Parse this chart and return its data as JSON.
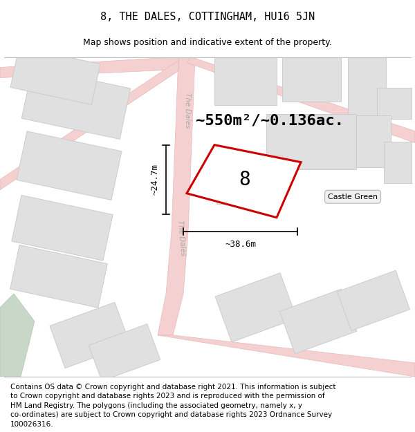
{
  "title": "8, THE DALES, COTTINGHAM, HU16 5JN",
  "subtitle": "Map shows position and indicative extent of the property.",
  "footer": "Contains OS data © Crown copyright and database right 2021. This information is subject\nto Crown copyright and database rights 2023 and is reproduced with the permission of\nHM Land Registry. The polygons (including the associated geometry, namely x, y\nco-ordinates) are subject to Crown copyright and database rights 2023 Ordnance Survey\n100026316.",
  "area_label": "~550m²/~0.136ac.",
  "number_label": "8",
  "dim_width": "~38.6m",
  "dim_height": "~24.7m",
  "road_label_1": "The Dales",
  "road_label_2": "The Dales",
  "castle_green_label": "Castle Green",
  "plot_outline_color": "#cc0000",
  "road_color": "#f5d0d0",
  "road_outline_color": "#e8b8b8",
  "building_color": "#e0e0e0",
  "building_outline": "#cccccc",
  "green_color": "#c8d8c8",
  "map_bg": "#f8f8f8",
  "title_fontsize": 11,
  "subtitle_fontsize": 9,
  "footer_fontsize": 7.5,
  "area_fontsize": 16,
  "number_fontsize": 20,
  "dim_fontsize": 9
}
